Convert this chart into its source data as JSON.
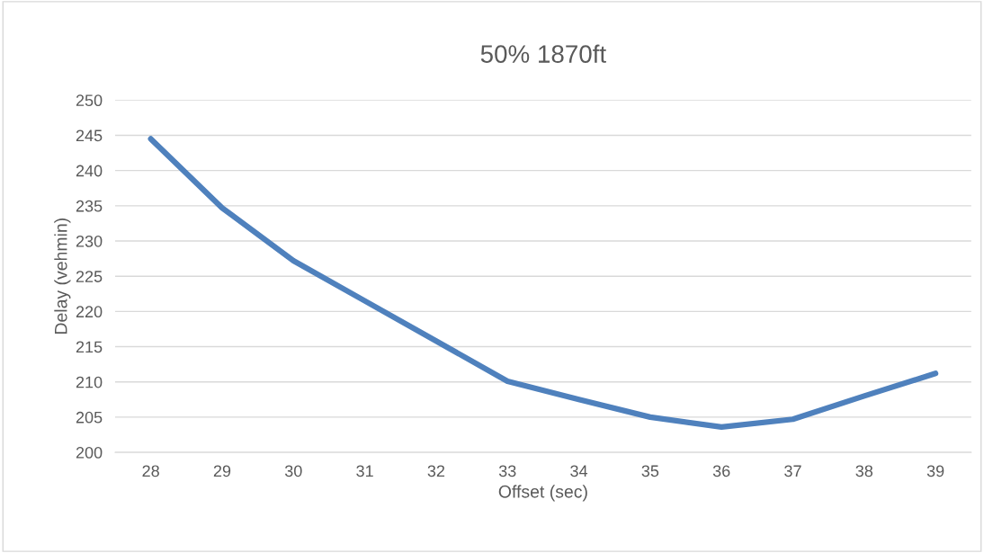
{
  "chart_data": {
    "type": "line",
    "title": "50% 1870ft",
    "xlabel": "Offset (sec)",
    "ylabel": "Delay (vehmin)",
    "categories": [
      "28",
      "29",
      "30",
      "31",
      "32",
      "33",
      "34",
      "35",
      "36",
      "37",
      "38",
      "39"
    ],
    "series": [
      {
        "color": "#4f81bd",
        "values": [
          244.5,
          234.7,
          227.2,
          221.5,
          215.8,
          210.1,
          207.5,
          205.0,
          203.6,
          204.7,
          208.0,
          211.2
        ]
      }
    ],
    "ylim": [
      200,
      250
    ],
    "yticks": [
      200,
      205,
      210,
      215,
      220,
      225,
      230,
      235,
      240,
      245,
      250
    ],
    "grid": "y",
    "legend": false,
    "marker": "none",
    "line_style": "solid"
  }
}
